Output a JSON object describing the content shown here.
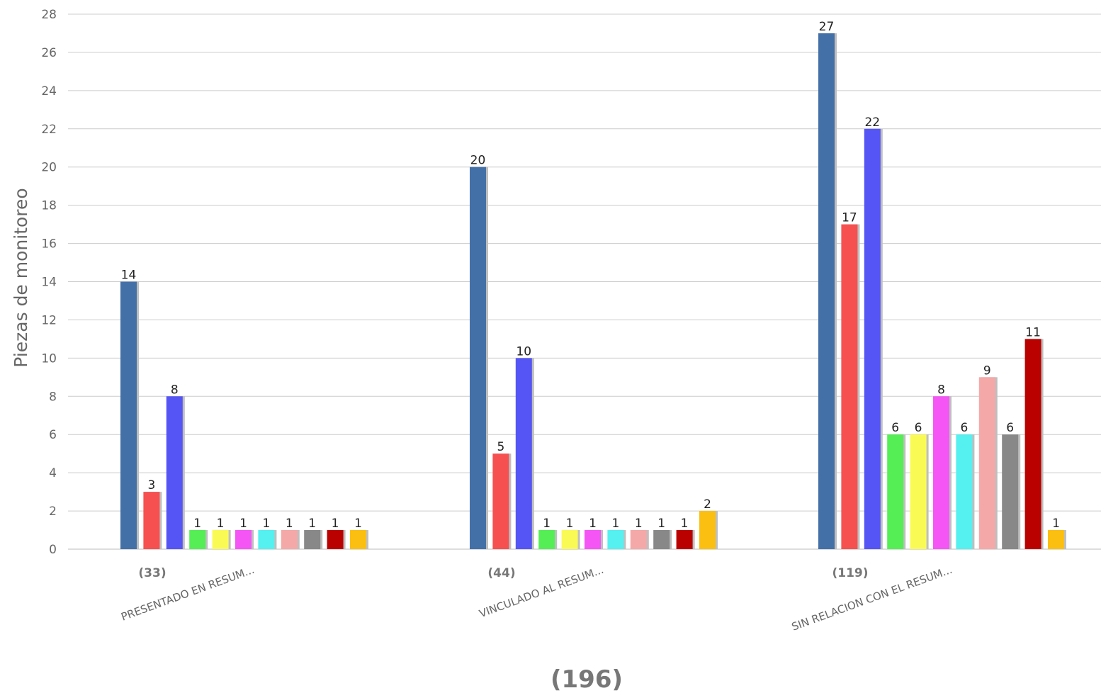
{
  "chart_data": {
    "type": "bar",
    "categories": [
      "PRESENTADO EN RESUM...",
      "VINCULADO AL RESUM...",
      "SIN RELACION CON EL RESUM..."
    ],
    "category_totals": [
      "(33)",
      "(44)",
      "(119)"
    ],
    "grand_total": "(196)",
    "ylabel": "Piezas de monitoreo",
    "xlabel": "",
    "ylim": [
      0,
      28
    ],
    "yticks": [
      0,
      2,
      4,
      6,
      8,
      10,
      12,
      14,
      16,
      18,
      20,
      22,
      24,
      26,
      28
    ],
    "grid": true,
    "series": [
      {
        "color": "#4470a8",
        "values": [
          14,
          20,
          27
        ]
      },
      {
        "color": "#f65050",
        "values": [
          3,
          5,
          17
        ]
      },
      {
        "color": "#5555f5",
        "values": [
          8,
          10,
          22
        ]
      },
      {
        "color": "#55ee55",
        "values": [
          1,
          1,
          6
        ]
      },
      {
        "color": "#fafa55",
        "values": [
          1,
          1,
          6
        ]
      },
      {
        "color": "#f555f5",
        "values": [
          1,
          1,
          8
        ]
      },
      {
        "color": "#55f0f0",
        "values": [
          1,
          1,
          6
        ]
      },
      {
        "color": "#f5a8a8",
        "values": [
          1,
          1,
          9
        ]
      },
      {
        "color": "#888888",
        "values": [
          1,
          1,
          6
        ]
      },
      {
        "color": "#bb0000",
        "values": [
          1,
          1,
          11
        ]
      },
      {
        "color": "#fbbf11",
        "values": [
          1,
          2,
          1
        ]
      }
    ]
  }
}
